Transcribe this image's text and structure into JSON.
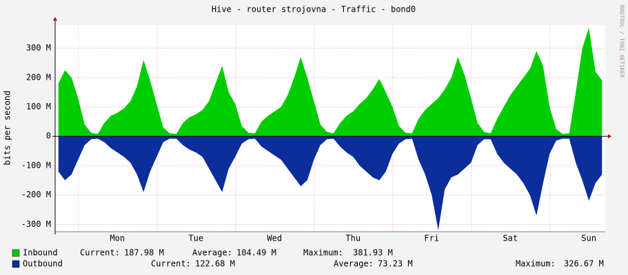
{
  "chart_data": {
    "type": "area",
    "title": "Hive - router strojovna - Traffic - bond0",
    "y_label": "bits per second",
    "watermark": "RRDTOOL / TOBI OETIKER",
    "categories": [
      null,
      null,
      null,
      null,
      null,
      null,
      null,
      null,
      null,
      "Mon",
      null,
      null,
      null,
      null,
      null,
      null,
      null,
      null,
      null,
      null,
      null,
      "Tue",
      null,
      null,
      null,
      null,
      null,
      null,
      null,
      null,
      null,
      null,
      null,
      "Wed",
      null,
      null,
      null,
      null,
      null,
      null,
      null,
      null,
      null,
      null,
      null,
      "Thu",
      null,
      null,
      null,
      null,
      null,
      null,
      null,
      null,
      null,
      null,
      null,
      "Fri",
      null,
      null,
      null,
      null,
      null,
      null,
      null,
      null,
      null,
      null,
      null,
      "Sat",
      null,
      null,
      null,
      null,
      null,
      null,
      null,
      null,
      null,
      null,
      null,
      "Sun",
      null,
      null
    ],
    "series": [
      {
        "name": "Inbound",
        "color": "#00cc00",
        "values": [
          180,
          225,
          200,
          130,
          40,
          12,
          8,
          45,
          70,
          80,
          95,
          120,
          170,
          260,
          190,
          110,
          30,
          10,
          8,
          45,
          65,
          75,
          90,
          120,
          180,
          240,
          150,
          110,
          35,
          12,
          10,
          50,
          70,
          85,
          100,
          140,
          200,
          270,
          200,
          120,
          40,
          15,
          10,
          45,
          70,
          85,
          110,
          130,
          160,
          195,
          150,
          100,
          35,
          12,
          10,
          60,
          90,
          110,
          130,
          160,
          200,
          270,
          210,
          130,
          45,
          15,
          10,
          60,
          100,
          140,
          170,
          200,
          230,
          290,
          240,
          100,
          25,
          8,
          10,
          150,
          300,
          370,
          220,
          190
        ],
        "stats": [
          {
            "label": "Current:",
            "value": "187.98 M"
          },
          {
            "label": "Average:",
            "value": "104.49 M"
          },
          {
            "label": "Maximum:",
            "value": "381.93 M"
          }
        ]
      },
      {
        "name": "Outbound",
        "color": "#0b2e9a",
        "values": [
          -120,
          -150,
          -130,
          -80,
          -30,
          -10,
          -8,
          -20,
          -40,
          -55,
          -70,
          -90,
          -130,
          -190,
          -120,
          -70,
          -20,
          -8,
          -8,
          -30,
          -45,
          -55,
          -70,
          -110,
          -150,
          -190,
          -110,
          -70,
          -25,
          -10,
          -8,
          -35,
          -50,
          -65,
          -80,
          -110,
          -140,
          -170,
          -150,
          -80,
          -30,
          -10,
          -8,
          -35,
          -55,
          -70,
          -100,
          -120,
          -140,
          -150,
          -120,
          -60,
          -25,
          -10,
          -8,
          -80,
          -130,
          -200,
          -320,
          -180,
          -140,
          -130,
          -110,
          -90,
          -30,
          -10,
          -10,
          -60,
          -90,
          -110,
          -130,
          -160,
          -200,
          -270,
          -160,
          -60,
          -15,
          -8,
          -8,
          -90,
          -150,
          -220,
          -160,
          -130
        ],
        "stats": [
          {
            "label": "Current:",
            "value": "122.68 M"
          },
          {
            "label": "Average:",
            "value": "73.23 M"
          },
          {
            "label": "Maximum:",
            "value": "326.67 M"
          }
        ]
      }
    ],
    "ylim": [
      -325,
      380
    ],
    "yticks": [
      {
        "value": -300,
        "label": "-300 M"
      },
      {
        "value": -200,
        "label": "-200 M"
      },
      {
        "value": -100,
        "label": "-100 M"
      },
      0,
      {
        "value": 100,
        "label": "100 M"
      },
      {
        "value": 200,
        "label": "200 M"
      },
      {
        "value": 300,
        "label": "300 M"
      }
    ],
    "grid": true
  }
}
